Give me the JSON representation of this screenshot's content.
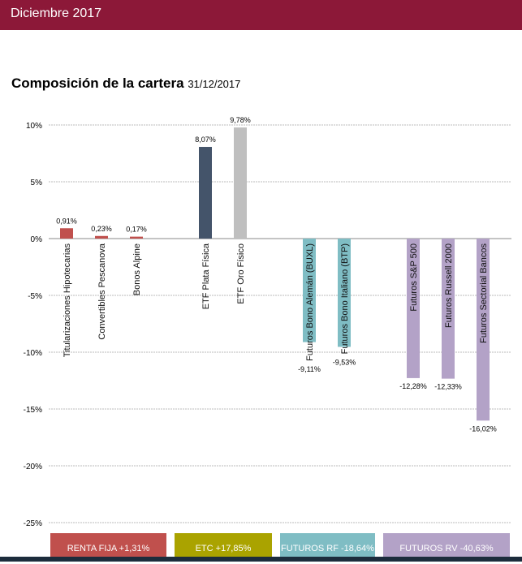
{
  "header": {
    "title": "Diciembre 2017"
  },
  "chart_data": {
    "type": "bar",
    "title": "Composición de la cartera",
    "subtitle": "31/12/2017",
    "ylim": [
      -25,
      10
    ],
    "yticks": [
      "10%",
      "5%",
      "0%",
      "-5%",
      "-10%",
      "-15%",
      "-20%",
      "-25%"
    ],
    "ytick_values": [
      10,
      5,
      0,
      -5,
      -10,
      -15,
      -20,
      -25
    ],
    "grid": true,
    "categories": [
      "Titularizaciones Hipotecarias",
      "Convertibles Pescanova",
      "Bonos Alpine",
      "ETF Plata Física",
      "ETF Oro Físico",
      "Futuros Bono Alemán (BUXL)",
      "Futuros Bono Italiano (BTP)",
      "Futuros S&P 500",
      "Futuros Russell 2000",
      "Futuros Sectorial Bancos"
    ],
    "values": [
      0.91,
      0.23,
      0.17,
      8.07,
      9.78,
      -9.11,
      -9.53,
      -12.28,
      -12.33,
      -16.02
    ],
    "value_labels": [
      "0,91%",
      "0,23%",
      "0,17%",
      "8,07%",
      "9,78%",
      "-9,11%",
      "-9,53%",
      "-12,28%",
      "-12,33%",
      "-16,02%"
    ],
    "colors": [
      "#c0504d",
      "#c0504d",
      "#c0504d",
      "#44546a",
      "#bfbfbf",
      "#7fbdc4",
      "#7fbdc4",
      "#b3a2c7",
      "#b3a2c7",
      "#b3a2c7"
    ],
    "legend": [
      {
        "label": "RENTA FIJA +1,31%",
        "color": "#c0504d"
      },
      {
        "label": "ETC +17,85%",
        "color": "#aaa300"
      },
      {
        "label": "FUTUROS RF -18,64%",
        "color": "#7fbdc4"
      },
      {
        "label": "FUTUROS RV -40,63%",
        "color": "#b3a2c7"
      }
    ]
  }
}
